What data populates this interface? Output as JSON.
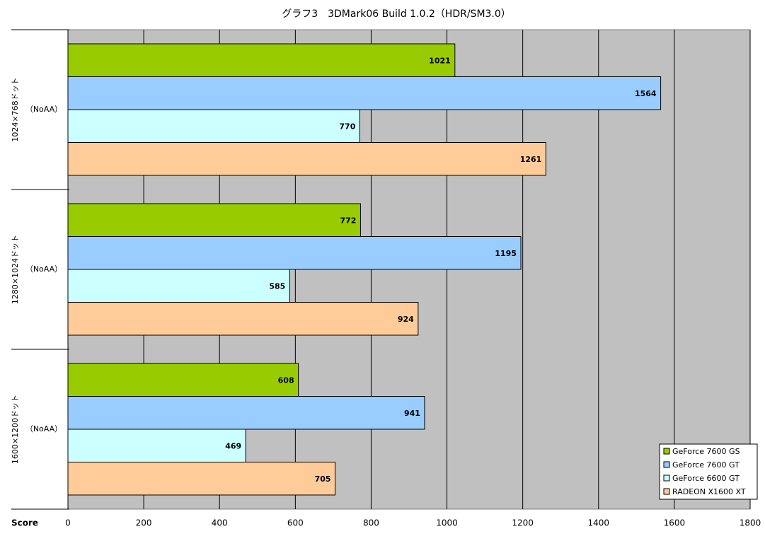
{
  "chart_data": {
    "type": "hbar",
    "title": "グラフ3　3DMark06 Build 1.0.2（HDR/SM3.0）",
    "x_label": "Score",
    "categories": [
      "1024×768ドット",
      "1280×1024ドット",
      "1600×1200ドット"
    ],
    "category_notes": [
      "（NoAA）",
      "（NoAA）",
      "（NoAA）"
    ],
    "series": [
      {
        "name": "GeForce 7600 GS",
        "color": "#99cc00",
        "values": [
          1021,
          772,
          608
        ]
      },
      {
        "name": "GeForce 7600 GT",
        "color": "#99ccff",
        "values": [
          1564,
          1195,
          941
        ]
      },
      {
        "name": "GeForce 6600 GT",
        "color": "#ccffff",
        "values": [
          770,
          585,
          469
        ]
      },
      {
        "name": "RADEON X1600 XT",
        "color": "#ffcc99",
        "values": [
          1261,
          924,
          705
        ]
      }
    ],
    "xlim": [
      0,
      1800
    ],
    "xticks": [
      0,
      200,
      400,
      600,
      800,
      1000,
      1200,
      1400,
      1600,
      1800
    ],
    "grid": true,
    "legend": "lower right"
  }
}
